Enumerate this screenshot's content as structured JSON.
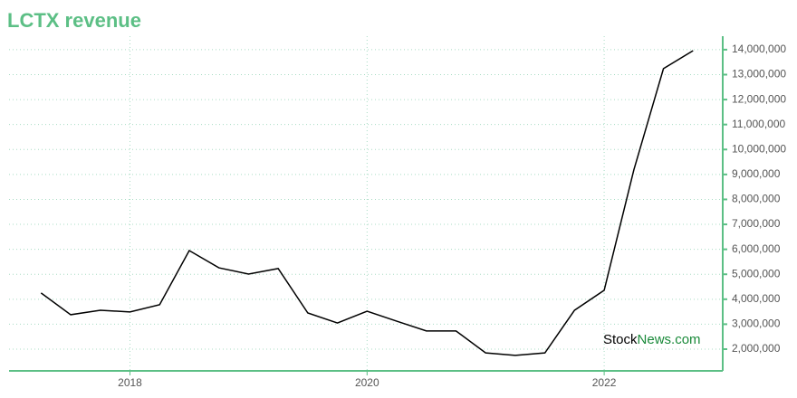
{
  "chart_data": {
    "type": "line",
    "title": "LCTX revenue",
    "x": [
      2017.25,
      2017.5,
      2017.75,
      2018,
      2018.25,
      2018.5,
      2018.75,
      2019,
      2019.25,
      2019.5,
      2019.75,
      2020,
      2020.25,
      2020.5,
      2020.75,
      2021,
      2021.25,
      2021.5,
      2021.75,
      2022,
      2022.25,
      2022.5,
      2022.75
    ],
    "series": [
      {
        "color": "#000000",
        "values": [
          4250000,
          3380000,
          3560000,
          3490000,
          3780000,
          5950000,
          5260000,
          5010000,
          5230000,
          3450000,
          3050000,
          3520000,
          3120000,
          2730000,
          2730000,
          1850000,
          1750000,
          1850000,
          3560000,
          4360000,
          9180000,
          13240000,
          13960000
        ]
      }
    ],
    "xlim": [
      2016.98,
      2023.0
    ],
    "xticks": [
      2018,
      2020,
      2022
    ],
    "ylim": [
      1130000,
      14540000
    ],
    "yticks": [
      {
        "value": 2000000,
        "label": "2,000,000"
      },
      {
        "value": 3000000,
        "label": "3,000,000"
      },
      {
        "value": 4000000,
        "label": "4,000,000"
      },
      {
        "value": 5000000,
        "label": "5,000,000"
      },
      {
        "value": 6000000,
        "label": "6,000,000"
      },
      {
        "value": 7000000,
        "label": "7,000,000"
      },
      {
        "value": 8000000,
        "label": "8,000,000"
      },
      {
        "value": 9000000,
        "label": "9,000,000"
      },
      {
        "value": 10000000,
        "label": "10,000,000"
      },
      {
        "value": 11000000,
        "label": "11,000,000"
      },
      {
        "value": 12000000,
        "label": "12,000,000"
      },
      {
        "value": 13000000,
        "label": "13,000,000"
      },
      {
        "value": 14000000,
        "label": "14,000,000"
      }
    ],
    "grid": true,
    "axis_color": "#5cbf85",
    "watermark": [
      "Stock",
      "News.com"
    ]
  }
}
